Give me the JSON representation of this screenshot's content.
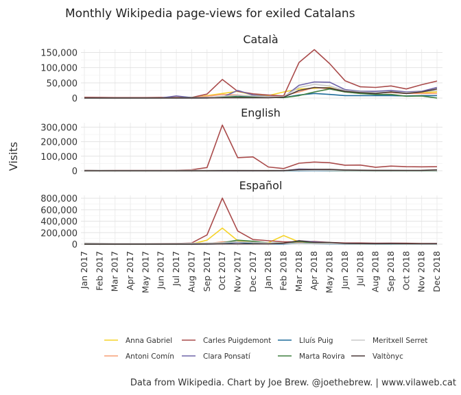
{
  "chart_data": {
    "type": "line",
    "title": "Monthly Wikipedia page-views for exiled Catalans",
    "ylabel": "Visits",
    "caption": "Data from Wikipedia. Chart by Joe Brew. @joethebrew. | www.vilaweb.cat",
    "x": [
      "Jan 2017",
      "Feb 2017",
      "Mar 2017",
      "Apr 2017",
      "May 2017",
      "Jun 2017",
      "Jul 2017",
      "Aug 2017",
      "Sep 2017",
      "Oct 2017",
      "Nov 2017",
      "Dec 2017",
      "Jan 2018",
      "Feb 2018",
      "Mar 2018",
      "Apr 2018",
      "May 2018",
      "Jun 2018",
      "Jul 2018",
      "Aug 2018",
      "Sep 2018",
      "Oct 2018",
      "Nov 2018",
      "Dec 2018"
    ],
    "legend": [
      {
        "name": "Anna Gabriel",
        "color": "#f5d327"
      },
      {
        "name": "Antoni Comín",
        "color": "#f79d75"
      },
      {
        "name": "Carles Puigdemont",
        "color": "#a94a4a"
      },
      {
        "name": "Clara Ponsatí",
        "color": "#6e63a8"
      },
      {
        "name": "Lluís Puig",
        "color": "#1d6b9a"
      },
      {
        "name": "Marta Rovira",
        "color": "#3e7f3e"
      },
      {
        "name": "Meritxell Serret",
        "color": "#c8c8c8"
      },
      {
        "name": "Valtònyc",
        "color": "#4a3838"
      }
    ],
    "panels": [
      {
        "title": "Català",
        "ylim": [
          0,
          160000
        ],
        "yticks": [
          0,
          50000,
          100000,
          150000
        ],
        "ytick_labels": [
          "0",
          "50,000",
          "100,000",
          "150,000"
        ],
        "series": [
          {
            "name": "Anna Gabriel",
            "values": [
              500,
              500,
              400,
              400,
              400,
              500,
              500,
              800,
              8000,
              15000,
              22000,
              10000,
              8000,
              20000,
              30000,
              32000,
              35000,
              20000,
              15000,
              15000,
              20000,
              15000,
              18000,
              20000
            ]
          },
          {
            "name": "Antoni Comín",
            "values": [
              1000,
              800,
              700,
              600,
              700,
              800,
              1000,
              1500,
              6000,
              12000,
              10000,
              6000,
              5000,
              8000,
              20000,
              35000,
              30000,
              20000,
              18000,
              17000,
              18000,
              15000,
              15000,
              15000
            ]
          },
          {
            "name": "Carles Puigdemont",
            "values": [
              2500,
              2000,
              1500,
              1500,
              1500,
              2000,
              2000,
              2000,
              13000,
              61000,
              22000,
              14000,
              10000,
              7000,
              117000,
              159000,
              113000,
              57000,
              37000,
              35000,
              40000,
              30000,
              44000,
              56000
            ]
          },
          {
            "name": "Clara Ponsatí",
            "values": [
              500,
              500,
              500,
              500,
              500,
              500,
              7000,
              1500,
              2000,
              3000,
              25000,
              10000,
              5000,
              3000,
              42000,
              53000,
              52000,
              28000,
              22000,
              22000,
              25000,
              20000,
              22000,
              35000
            ]
          },
          {
            "name": "Lluís Puig",
            "values": [
              200,
              200,
              200,
              200,
              200,
              200,
              200,
              200,
              500,
              2000,
              8000,
              4000,
              2000,
              1500,
              10000,
              15000,
              12000,
              8000,
              8000,
              8000,
              8000,
              7000,
              8000,
              8000
            ]
          },
          {
            "name": "Marta Rovira",
            "values": [
              500,
              500,
              500,
              500,
              500,
              500,
              600,
              800,
              2000,
              5000,
              4000,
              3000,
              2000,
              1500,
              8000,
              20000,
              30000,
              20000,
              15000,
              12000,
              12000,
              6000,
              7000,
              0
            ]
          },
          {
            "name": "Meritxell Serret",
            "values": [
              300,
              300,
              300,
              300,
              300,
              300,
              300,
              400,
              2000,
              6000,
              9000,
              7000,
              4000,
              5000,
              35000,
              45000,
              40000,
              25000,
              20000,
              18000,
              20000,
              18000,
              20000,
              25000
            ]
          },
          {
            "name": "Valtònyc",
            "values": [
              300,
              300,
              300,
              300,
              300,
              300,
              300,
              300,
              500,
              800,
              1000,
              800,
              800,
              3000,
              25000,
              35000,
              33000,
              22000,
              18000,
              15000,
              20000,
              15000,
              20000,
              30000
            ]
          }
        ]
      },
      {
        "title": "English",
        "ylim": [
          0,
          330000
        ],
        "yticks": [
          0,
          100000,
          200000,
          300000
        ],
        "ytick_labels": [
          "0",
          "100,000",
          "200,000",
          "300,000"
        ],
        "series": [
          {
            "name": "Anna Gabriel",
            "values": [
              300,
              300,
              300,
              300,
              300,
              300,
              300,
              300,
              500,
              1500,
              1000,
              800,
              800,
              3000,
              3000,
              2000,
              1500,
              1000,
              1000,
              800,
              800,
              800,
              800,
              800
            ]
          },
          {
            "name": "Antoni Comín",
            "values": [
              200,
              200,
              200,
              200,
              200,
              200,
              200,
              200,
              300,
              1000,
              1000,
              600,
              600,
              1000,
              2000,
              2500,
              2000,
              1200,
              1000,
              1000,
              1000,
              900,
              900,
              900
            ]
          },
          {
            "name": "Carles Puigdemont",
            "values": [
              4000,
              3500,
              3500,
              3500,
              3500,
              3500,
              4000,
              7000,
              22000,
              314000,
              90000,
              95000,
              26000,
              15000,
              52000,
              60000,
              55000,
              38000,
              39000,
              24000,
              32000,
              28000,
              27000,
              28000
            ]
          },
          {
            "name": "Clara Ponsatí",
            "values": [
              100,
              100,
              100,
              100,
              100,
              100,
              100,
              100,
              200,
              500,
              500,
              400,
              300,
              300,
              12000,
              10000,
              8000,
              3000,
              2500,
              2000,
              2000,
              1500,
              1500,
              2500
            ]
          },
          {
            "name": "Lluís Puig",
            "values": [
              50,
              50,
              50,
              50,
              50,
              50,
              50,
              50,
              100,
              200,
              300,
              200,
              100,
              100,
              500,
              800,
              600,
              400,
              400,
              300,
              300,
              300,
              300,
              300
            ]
          },
          {
            "name": "Marta Rovira",
            "values": [
              100,
              100,
              100,
              100,
              100,
              100,
              100,
              100,
              300,
              1000,
              1000,
              800,
              600,
              1000,
              5000,
              5000,
              3000,
              1500,
              1200,
              1000,
              1000,
              800,
              800,
              800
            ]
          },
          {
            "name": "Meritxell Serret",
            "values": [
              4000,
              3500,
              3000,
              3000,
              3000,
              3000,
              3500,
              3500,
              3500,
              4000,
              4500,
              4000,
              3500,
              3500,
              3500,
              3500,
              3500,
              3000,
              3000,
              3000,
              3000,
              3000,
              3000,
              3000
            ]
          },
          {
            "name": "Valtònyc",
            "values": [
              100,
              100,
              100,
              100,
              100,
              100,
              100,
              100,
              200,
              300,
              300,
              300,
              300,
              1000,
              8000,
              9000,
              10000,
              5000,
              4000,
              3000,
              3000,
              2500,
              3000,
              6000
            ]
          }
        ]
      },
      {
        "title": "Español",
        "ylim": [
          0,
          850000
        ],
        "yticks": [
          0,
          200000,
          400000,
          600000,
          800000
        ],
        "ytick_labels": [
          "0",
          "200,000",
          "400,000",
          "600,000",
          "800,000"
        ],
        "series": [
          {
            "name": "Anna Gabriel",
            "values": [
              2000,
              1500,
              1500,
              1500,
              1500,
              2000,
              2000,
              3000,
              70000,
              280000,
              60000,
              30000,
              25000,
              150000,
              40000,
              15000,
              10000,
              6000,
              5000,
              4000,
              4000,
              4000,
              3000,
              3000
            ]
          },
          {
            "name": "Antoni Comín",
            "values": [
              3000,
              2500,
              2500,
              2500,
              2500,
              3000,
              3000,
              3500,
              10000,
              40000,
              40000,
              30000,
              15000,
              10000,
              30000,
              40000,
              25000,
              15000,
              12000,
              10000,
              12000,
              10000,
              9000,
              9000
            ]
          },
          {
            "name": "Carles Puigdemont",
            "values": [
              10000,
              8000,
              8000,
              8000,
              8000,
              10000,
              12000,
              20000,
              160000,
              803000,
              230000,
              80000,
              60000,
              40000,
              40000,
              45000,
              30000,
              20000,
              20000,
              15000,
              18000,
              15000,
              12000,
              12000
            ]
          },
          {
            "name": "Clara Ponsatí",
            "values": [
              500,
              500,
              500,
              500,
              500,
              500,
              1000,
              1000,
              3000,
              10000,
              30000,
              10000,
              5000,
              3000,
              60000,
              40000,
              25000,
              12000,
              10000,
              9000,
              10000,
              8000,
              8000,
              10000
            ]
          },
          {
            "name": "Lluís Puig",
            "values": [
              300,
              300,
              300,
              300,
              300,
              300,
              300,
              300,
              800,
              5000,
              40000,
              10000,
              3000,
              2000,
              15000,
              8000,
              5000,
              3000,
              3000,
              2500,
              2500,
              2000,
              2000,
              2000
            ]
          },
          {
            "name": "Marta Rovira",
            "values": [
              1000,
              1000,
              1000,
              1000,
              1000,
              1000,
              1000,
              1500,
              8000,
              25000,
              70000,
              50000,
              20000,
              15000,
              45000,
              20000,
              15000,
              8000,
              7000,
              6000,
              6000,
              5000,
              5000,
              4000
            ]
          },
          {
            "name": "Meritxell Serret",
            "values": [
              20000,
              15000,
              10000,
              10000,
              10000,
              10000,
              12000,
              15000,
              20000,
              25000,
              40000,
              30000,
              20000,
              10000,
              15000,
              10000,
              10000,
              8000,
              8000,
              8000,
              8000,
              7000,
              7000,
              7000
            ]
          },
          {
            "name": "Valtònyc",
            "values": [
              1000,
              1000,
              1000,
              1000,
              1000,
              1000,
              1000,
              1000,
              2000,
              3000,
              3000,
              3000,
              3000,
              15000,
              60000,
              30000,
              30000,
              12000,
              10000,
              8000,
              10000,
              8000,
              7000,
              7000
            ]
          }
        ]
      }
    ]
  }
}
